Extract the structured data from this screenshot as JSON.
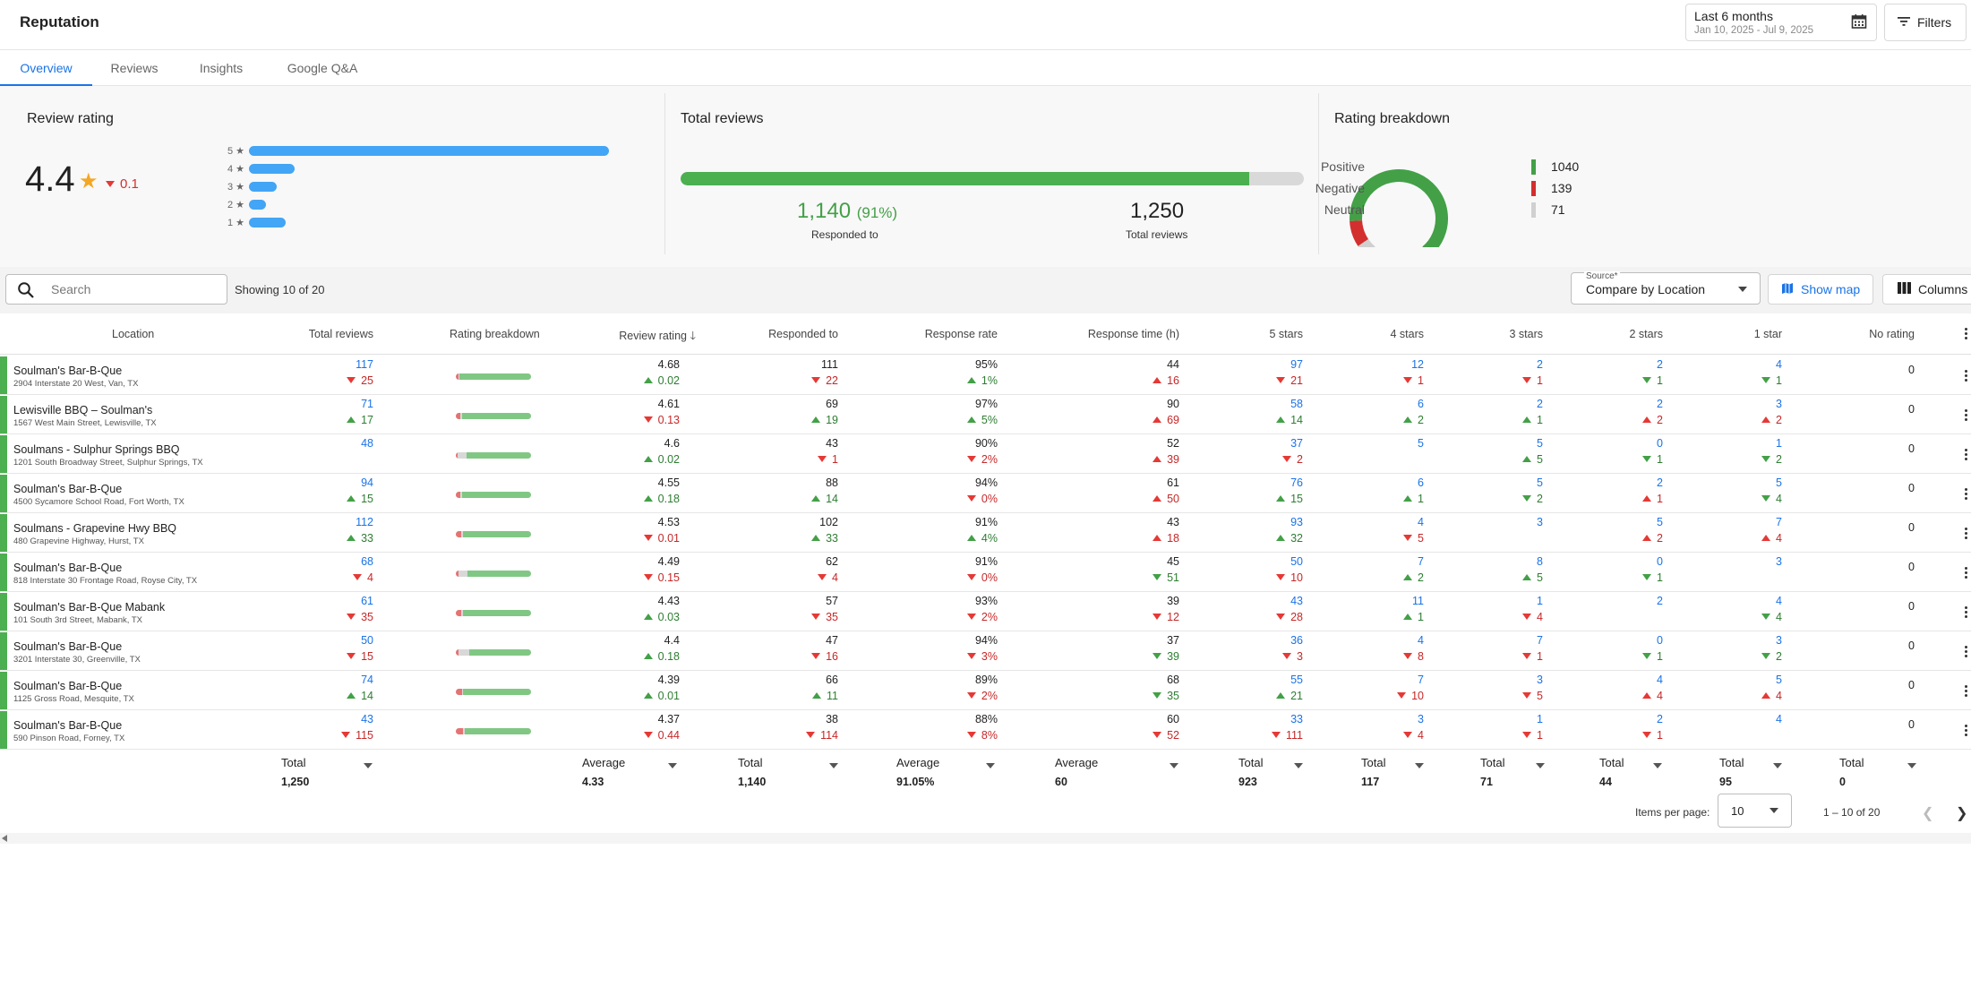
{
  "app": {
    "title": "Reputation"
  },
  "date_filter": {
    "label": "Last 6 months",
    "range": "Jan 10, 2025 - Jul 9, 2025"
  },
  "filters_label": "Filters",
  "tabs": [
    {
      "label": "Overview",
      "active": true
    },
    {
      "label": "Reviews",
      "active": false
    },
    {
      "label": "Insights",
      "active": false
    },
    {
      "label": "Google Q&A",
      "active": false
    }
  ],
  "review_rating": {
    "title": "Review rating",
    "value": "4.4",
    "delta": "0.1",
    "delta_direction": "down",
    "distribution": [
      {
        "label": "5 ★",
        "fraction": 1.0
      },
      {
        "label": "4 ★",
        "fraction": 0.126
      },
      {
        "label": "3 ★",
        "fraction": 0.077
      },
      {
        "label": "2 ★",
        "fraction": 0.048
      },
      {
        "label": "1 ★",
        "fraction": 0.103
      }
    ]
  },
  "total_reviews": {
    "title": "Total reviews",
    "responded": "1,140",
    "responded_pct": "(91%)",
    "responded_label": "Responded to",
    "responded_fraction": 0.912,
    "total": "1,250",
    "total_label": "Total reviews"
  },
  "rating_breakdown": {
    "title": "Rating breakdown",
    "items": [
      {
        "name": "Positive",
        "value": "1040",
        "color": "#43a047"
      },
      {
        "name": "Negative",
        "value": "139",
        "color": "#d32f2f"
      },
      {
        "name": "Neutral",
        "value": "71",
        "color": "#d0d0d0"
      }
    ]
  },
  "search": {
    "placeholder": "Search"
  },
  "showing_text": "Showing 10 of 20",
  "source": {
    "label": "Source*",
    "value": "Compare by Location"
  },
  "show_map_label": "Show map",
  "columns_label": "Columns",
  "columns": {
    "location": "Location",
    "total_reviews": "Total reviews",
    "rating_breakdown": "Rating breakdown",
    "review_rating": "Review rating",
    "responded_to": "Responded to",
    "response_rate": "Response rate",
    "response_time": "Response time (h)",
    "s5": "5 stars",
    "s4": "4 stars",
    "s3": "3 stars",
    "s2": "2 stars",
    "s1": "1 star",
    "none": "No rating"
  },
  "rows": [
    {
      "name": "Soulman's Bar-B-Que",
      "address": "2904 Interstate 20 West, Van, TX",
      "breakdown": {
        "neg": 0.04,
        "neu": 0.01,
        "pos": 0.95
      },
      "total": {
        "v": "117",
        "d": "25",
        "t": "down-r"
      },
      "rating": {
        "v": "4.68",
        "d": "0.02",
        "t": "up-g"
      },
      "responded": {
        "v": "111",
        "d": "22",
        "t": "down-r"
      },
      "rate": {
        "v": "95%",
        "d": "1%",
        "t": "up-g"
      },
      "time": {
        "v": "44",
        "d": "16",
        "t": "up-r"
      },
      "s5": {
        "v": "97",
        "d": "21",
        "t": "down-r"
      },
      "s4": {
        "v": "12",
        "d": "1",
        "t": "down-r"
      },
      "s3": {
        "v": "2",
        "d": "1",
        "t": "down-r"
      },
      "s2": {
        "v": "2",
        "d": "1",
        "t": "down-g"
      },
      "s1": {
        "v": "4",
        "d": "1",
        "t": "down-g"
      },
      "none": "0"
    },
    {
      "name": "Lewisville BBQ – Soulman's",
      "address": "1567 West Main Street, Lewisville, TX",
      "breakdown": {
        "neg": 0.06,
        "neu": 0.02,
        "pos": 0.92
      },
      "total": {
        "v": "71",
        "d": "17",
        "t": "up-g"
      },
      "rating": {
        "v": "4.61",
        "d": "0.13",
        "t": "down-r"
      },
      "responded": {
        "v": "69",
        "d": "19",
        "t": "up-g"
      },
      "rate": {
        "v": "97%",
        "d": "5%",
        "t": "up-g"
      },
      "time": {
        "v": "90",
        "d": "69",
        "t": "up-r"
      },
      "s5": {
        "v": "58",
        "d": "14",
        "t": "up-g"
      },
      "s4": {
        "v": "6",
        "d": "2",
        "t": "up-g"
      },
      "s3": {
        "v": "2",
        "d": "1",
        "t": "up-g"
      },
      "s2": {
        "v": "2",
        "d": "2",
        "t": "up-r"
      },
      "s1": {
        "v": "3",
        "d": "2",
        "t": "up-r"
      },
      "none": "0"
    },
    {
      "name": "Soulmans - Sulphur Springs BBQ",
      "address": "1201 South Broadway Street, Sulphur Springs, TX",
      "breakdown": {
        "neg": 0.02,
        "neu": 0.12,
        "pos": 0.86
      },
      "total": {
        "v": "48",
        "d": "",
        "t": ""
      },
      "rating": {
        "v": "4.6",
        "d": "0.02",
        "t": "up-g"
      },
      "responded": {
        "v": "43",
        "d": "1",
        "t": "down-r"
      },
      "rate": {
        "v": "90%",
        "d": "2%",
        "t": "down-r"
      },
      "time": {
        "v": "52",
        "d": "39",
        "t": "up-r"
      },
      "s5": {
        "v": "37",
        "d": "2",
        "t": "down-r"
      },
      "s4": {
        "v": "5",
        "d": "",
        "t": ""
      },
      "s3": {
        "v": "5",
        "d": "5",
        "t": "up-g"
      },
      "s2": {
        "v": "0",
        "d": "1",
        "t": "down-g"
      },
      "s1": {
        "v": "1",
        "d": "2",
        "t": "down-g"
      },
      "none": "0"
    },
    {
      "name": "Soulman's Bar-B-Que",
      "address": "4500 Sycamore School Road, Fort Worth, TX",
      "breakdown": {
        "neg": 0.06,
        "neu": 0.02,
        "pos": 0.92
      },
      "total": {
        "v": "94",
        "d": "15",
        "t": "up-g"
      },
      "rating": {
        "v": "4.55",
        "d": "0.18",
        "t": "up-g"
      },
      "responded": {
        "v": "88",
        "d": "14",
        "t": "up-g"
      },
      "rate": {
        "v": "94%",
        "d": "0%",
        "t": "down-r"
      },
      "time": {
        "v": "61",
        "d": "50",
        "t": "up-r"
      },
      "s5": {
        "v": "76",
        "d": "15",
        "t": "up-g"
      },
      "s4": {
        "v": "6",
        "d": "1",
        "t": "up-g"
      },
      "s3": {
        "v": "5",
        "d": "2",
        "t": "down-g"
      },
      "s2": {
        "v": "2",
        "d": "1",
        "t": "up-r"
      },
      "s1": {
        "v": "5",
        "d": "4",
        "t": "down-g"
      },
      "none": "0"
    },
    {
      "name": "Soulmans - Grapevine Hwy BBQ",
      "address": "480 Grapevine Highway, Hurst, TX",
      "breakdown": {
        "neg": 0.07,
        "neu": 0.03,
        "pos": 0.9
      },
      "total": {
        "v": "112",
        "d": "33",
        "t": "up-g"
      },
      "rating": {
        "v": "4.53",
        "d": "0.01",
        "t": "down-r"
      },
      "responded": {
        "v": "102",
        "d": "33",
        "t": "up-g"
      },
      "rate": {
        "v": "91%",
        "d": "4%",
        "t": "up-g"
      },
      "time": {
        "v": "43",
        "d": "18",
        "t": "up-r"
      },
      "s5": {
        "v": "93",
        "d": "32",
        "t": "up-g"
      },
      "s4": {
        "v": "4",
        "d": "5",
        "t": "down-r"
      },
      "s3": {
        "v": "3",
        "d": "",
        "t": ""
      },
      "s2": {
        "v": "5",
        "d": "2",
        "t": "up-r"
      },
      "s1": {
        "v": "7",
        "d": "4",
        "t": "up-r"
      },
      "none": "0"
    },
    {
      "name": "Soulman's Bar-B-Que",
      "address": "818 Interstate 30 Frontage Road, Royse City, TX",
      "breakdown": {
        "neg": 0.04,
        "neu": 0.12,
        "pos": 0.84
      },
      "total": {
        "v": "68",
        "d": "4",
        "t": "down-r"
      },
      "rating": {
        "v": "4.49",
        "d": "0.15",
        "t": "down-r"
      },
      "responded": {
        "v": "62",
        "d": "4",
        "t": "down-r"
      },
      "rate": {
        "v": "91%",
        "d": "0%",
        "t": "down-r"
      },
      "time": {
        "v": "45",
        "d": "51",
        "t": "down-g"
      },
      "s5": {
        "v": "50",
        "d": "10",
        "t": "down-r"
      },
      "s4": {
        "v": "7",
        "d": "2",
        "t": "up-g"
      },
      "s3": {
        "v": "8",
        "d": "5",
        "t": "up-g"
      },
      "s2": {
        "v": "0",
        "d": "1",
        "t": "down-g"
      },
      "s1": {
        "v": "3",
        "d": "",
        "t": ""
      },
      "none": "0"
    },
    {
      "name": "Soulman's Bar-B-Que Mabank",
      "address": "101 South 3rd Street, Mabank, TX",
      "breakdown": {
        "neg": 0.07,
        "neu": 0.02,
        "pos": 0.91
      },
      "total": {
        "v": "61",
        "d": "35",
        "t": "down-r"
      },
      "rating": {
        "v": "4.43",
        "d": "0.03",
        "t": "up-g"
      },
      "responded": {
        "v": "57",
        "d": "35",
        "t": "down-r"
      },
      "rate": {
        "v": "93%",
        "d": "2%",
        "t": "down-r"
      },
      "time": {
        "v": "39",
        "d": "12",
        "t": "down-r"
      },
      "s5": {
        "v": "43",
        "d": "28",
        "t": "down-r"
      },
      "s4": {
        "v": "11",
        "d": "1",
        "t": "up-g"
      },
      "s3": {
        "v": "1",
        "d": "4",
        "t": "down-r"
      },
      "s2": {
        "v": "2",
        "d": "",
        "t": ""
      },
      "s1": {
        "v": "4",
        "d": "4",
        "t": "down-g"
      },
      "none": "0"
    },
    {
      "name": "Soulman's Bar-B-Que",
      "address": "3201 Interstate 30, Greenville, TX",
      "breakdown": {
        "neg": 0.04,
        "neu": 0.14,
        "pos": 0.82
      },
      "total": {
        "v": "50",
        "d": "15",
        "t": "down-r"
      },
      "rating": {
        "v": "4.4",
        "d": "0.18",
        "t": "up-g"
      },
      "responded": {
        "v": "47",
        "d": "16",
        "t": "down-r"
      },
      "rate": {
        "v": "94%",
        "d": "3%",
        "t": "down-r"
      },
      "time": {
        "v": "37",
        "d": "39",
        "t": "down-g"
      },
      "s5": {
        "v": "36",
        "d": "3",
        "t": "down-r"
      },
      "s4": {
        "v": "4",
        "d": "8",
        "t": "down-r"
      },
      "s3": {
        "v": "7",
        "d": "1",
        "t": "down-r"
      },
      "s2": {
        "v": "0",
        "d": "1",
        "t": "down-g"
      },
      "s1": {
        "v": "3",
        "d": "2",
        "t": "down-g"
      },
      "none": "0"
    },
    {
      "name": "Soulman's Bar-B-Que",
      "address": "1125 Gross Road, Mesquite, TX",
      "breakdown": {
        "neg": 0.08,
        "neu": 0.02,
        "pos": 0.9
      },
      "total": {
        "v": "74",
        "d": "14",
        "t": "up-g"
      },
      "rating": {
        "v": "4.39",
        "d": "0.01",
        "t": "up-g"
      },
      "responded": {
        "v": "66",
        "d": "11",
        "t": "up-g"
      },
      "rate": {
        "v": "89%",
        "d": "2%",
        "t": "down-r"
      },
      "time": {
        "v": "68",
        "d": "35",
        "t": "down-g"
      },
      "s5": {
        "v": "55",
        "d": "21",
        "t": "up-g"
      },
      "s4": {
        "v": "7",
        "d": "10",
        "t": "down-r"
      },
      "s3": {
        "v": "3",
        "d": "5",
        "t": "down-r"
      },
      "s2": {
        "v": "4",
        "d": "4",
        "t": "up-r"
      },
      "s1": {
        "v": "5",
        "d": "4",
        "t": "up-r"
      },
      "none": "0"
    },
    {
      "name": "Soulman's Bar-B-Que",
      "address": "590 Pinson Road, Forney, TX",
      "breakdown": {
        "neg": 0.1,
        "neu": 0.02,
        "pos": 0.88
      },
      "total": {
        "v": "43",
        "d": "115",
        "t": "down-r"
      },
      "rating": {
        "v": "4.37",
        "d": "0.44",
        "t": "down-r"
      },
      "responded": {
        "v": "38",
        "d": "114",
        "t": "down-r"
      },
      "rate": {
        "v": "88%",
        "d": "8%",
        "t": "down-r"
      },
      "time": {
        "v": "60",
        "d": "52",
        "t": "down-r"
      },
      "s5": {
        "v": "33",
        "d": "111",
        "t": "down-r"
      },
      "s4": {
        "v": "3",
        "d": "4",
        "t": "down-r"
      },
      "s3": {
        "v": "1",
        "d": "1",
        "t": "down-r"
      },
      "s2": {
        "v": "2",
        "d": "1",
        "t": "down-r"
      },
      "s1": {
        "v": "4",
        "d": "",
        "t": ""
      },
      "none": "0"
    }
  ],
  "footer": {
    "total_reviews": {
      "label": "Total",
      "value": "1,250"
    },
    "review_rating": {
      "label": "Average",
      "value": "4.33"
    },
    "responded_to": {
      "label": "Total",
      "value": "1,140"
    },
    "response_rate": {
      "label": "Average",
      "value": "91.05%"
    },
    "response_time": {
      "label": "Average",
      "value": "60"
    },
    "s5": {
      "label": "Total",
      "value": "923"
    },
    "s4": {
      "label": "Total",
      "value": "117"
    },
    "s3": {
      "label": "Total",
      "value": "71"
    },
    "s2": {
      "label": "Total",
      "value": "44"
    },
    "s1": {
      "label": "Total",
      "value": "95"
    },
    "none": {
      "label": "Total",
      "value": "0"
    }
  },
  "pagination": {
    "items_per_page_label": "Items per page:",
    "items_per_page": "10",
    "range": "1 – 10 of 20"
  }
}
